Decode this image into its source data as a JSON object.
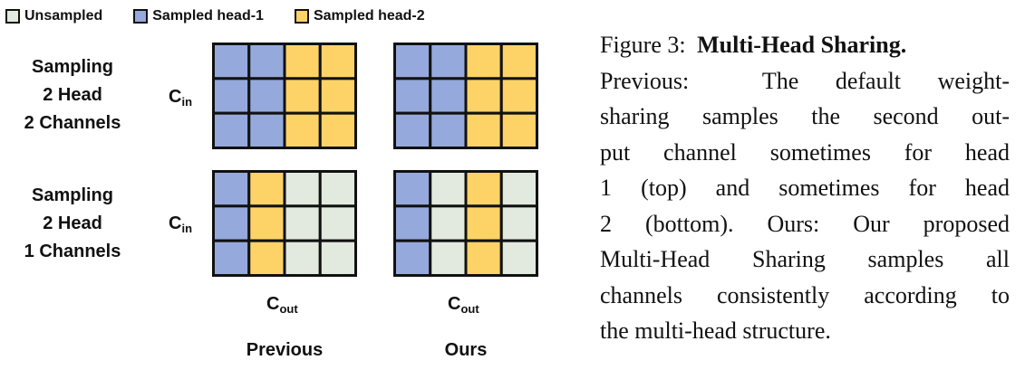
{
  "legend": {
    "items": [
      {
        "label": "Unsampled",
        "color": "#e2e9df"
      },
      {
        "label": "Sampled head-1",
        "color": "#95a9dc"
      },
      {
        "label": "Sampled head-2",
        "color": "#fdd368"
      }
    ]
  },
  "rows": [
    {
      "label_lines": [
        "Sampling",
        "2 Head",
        "2 Channels"
      ],
      "axis_label": "C",
      "axis_sub": "in"
    },
    {
      "label_lines": [
        "Sampling",
        "2 Head",
        "1 Channels"
      ],
      "axis_label": "C",
      "axis_sub": "in"
    }
  ],
  "columns": [
    {
      "axis_label": "C",
      "axis_sub": "out",
      "title": "Previous"
    },
    {
      "axis_label": "C",
      "axis_sub": "out",
      "title": "Ours"
    }
  ],
  "grids": {
    "legend_key": [
      "U",
      "H1",
      "H2"
    ],
    "previous_top": [
      [
        "H1",
        "H1",
        "H2",
        "H2"
      ],
      [
        "H1",
        "H1",
        "H2",
        "H2"
      ],
      [
        "H1",
        "H1",
        "H2",
        "H2"
      ]
    ],
    "ours_top": [
      [
        "H1",
        "H1",
        "H2",
        "H2"
      ],
      [
        "H1",
        "H1",
        "H2",
        "H2"
      ],
      [
        "H1",
        "H1",
        "H2",
        "H2"
      ]
    ],
    "previous_bottom": [
      [
        "H1",
        "H2",
        "U",
        "U"
      ],
      [
        "H1",
        "H2",
        "U",
        "U"
      ],
      [
        "H1",
        "H2",
        "U",
        "U"
      ]
    ],
    "ours_bottom": [
      [
        "H1",
        "U",
        "H2",
        "U"
      ],
      [
        "H1",
        "U",
        "H2",
        "U"
      ],
      [
        "H1",
        "U",
        "H2",
        "U"
      ]
    ]
  },
  "caption": {
    "label": "Figure 3:",
    "title": "Multi-Head Sharing.",
    "lines": [
      "Previous:  The default weight-",
      "sharing samples the second out-",
      "put channel sometimes for head",
      "1 (top) and sometimes for head",
      "2 (bottom). Ours: Our proposed",
      "Multi-Head Sharing samples all",
      "channels consistently according to",
      "the multi-head structure."
    ]
  }
}
